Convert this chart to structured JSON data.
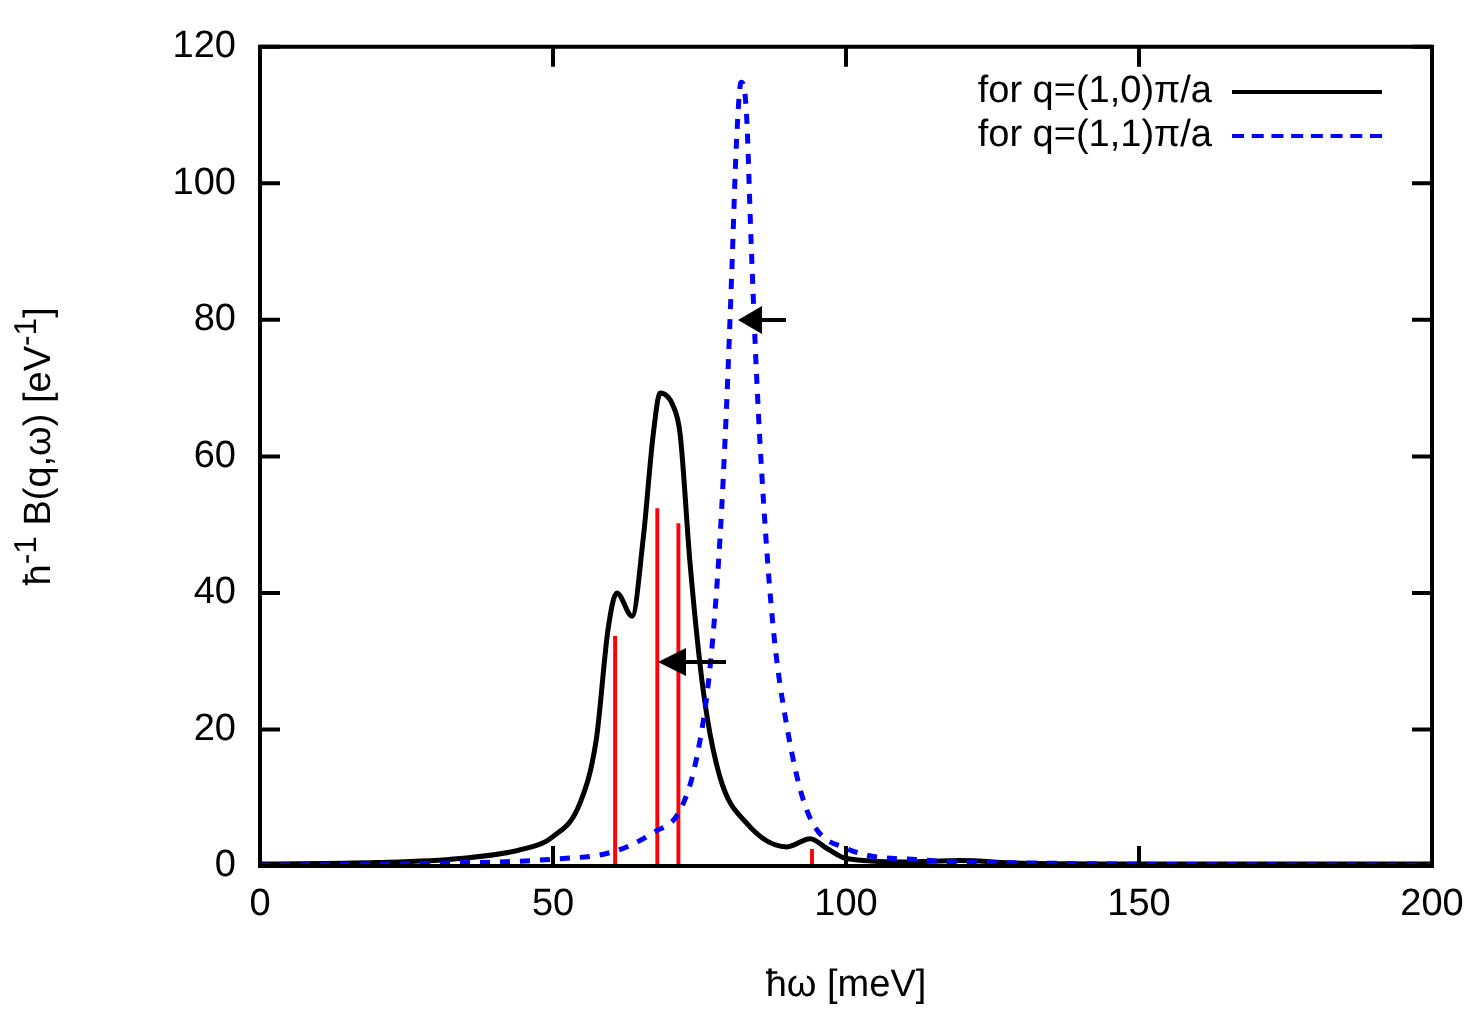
{
  "chart_data": {
    "type": "line",
    "xlabel": "ħω [meV]",
    "ylabel": "ħ$^{-1}$ B(q,ω) [eV$^{-1}$]",
    "xlim": [
      0,
      200
    ],
    "xticks": [
      0,
      50,
      100,
      150,
      200
    ],
    "ylim": [
      0,
      120
    ],
    "yticks": [
      0,
      20,
      40,
      60,
      80,
      100,
      120
    ],
    "grid": false,
    "legend": "top right",
    "marker": "none",
    "series": [
      {
        "name": "for q=(1,0)π/a",
        "color": "#000000",
        "line_style": "solid",
        "x": [
          0,
          20,
          34.1,
          45,
          50,
          54.6,
          57.4,
          59.4,
          60.9,
          63.5,
          65.4,
          67.1,
          68.3,
          70.5,
          71.7,
          73.4,
          75.7,
          78.5,
          83,
          89.9,
          93.9,
          96.7,
          100.1,
          110,
          119.5,
          130,
          150,
          200
        ],
        "values": [
          0.3,
          0.5,
          1.1,
          2.5,
          4.3,
          9.2,
          18.6,
          34.7,
          40,
          36.6,
          48,
          63.2,
          69.3,
          67.4,
          63.2,
          44.2,
          25.3,
          13,
          6.3,
          2.8,
          4,
          2.6,
          1.1,
          0.6,
          0.8,
          0.4,
          0.3,
          0.3
        ]
      },
      {
        "name": "for q=(1,1)π/a",
        "color": "#0000ff",
        "line_style": "dashed",
        "x": [
          0,
          30,
          50,
          60.3,
          67.1,
          71.7,
          74.5,
          76.8,
          78.5,
          79.6,
          80.5,
          81.3,
          82.1,
          83,
          83.8,
          84.7,
          85.9,
          87.6,
          89.9,
          93.3,
          100,
          112.6,
          135,
          200
        ],
        "values": [
          0.1,
          0.4,
          1,
          2.1,
          4.9,
          8.2,
          15.8,
          29.1,
          48,
          67,
          86.8,
          105.8,
          114.8,
          110.5,
          91.6,
          72.6,
          53.7,
          34.7,
          20.5,
          8.2,
          2.6,
          0.9,
          0.4,
          0.1
        ]
      },
      {
        "type": "bar",
        "color": "#ff0000",
        "x": [
          60.6,
          67.8,
          71.4,
          94.2
        ],
        "values": [
          33.6,
          52.3,
          50.1,
          2.4
        ]
      }
    ]
  }
}
